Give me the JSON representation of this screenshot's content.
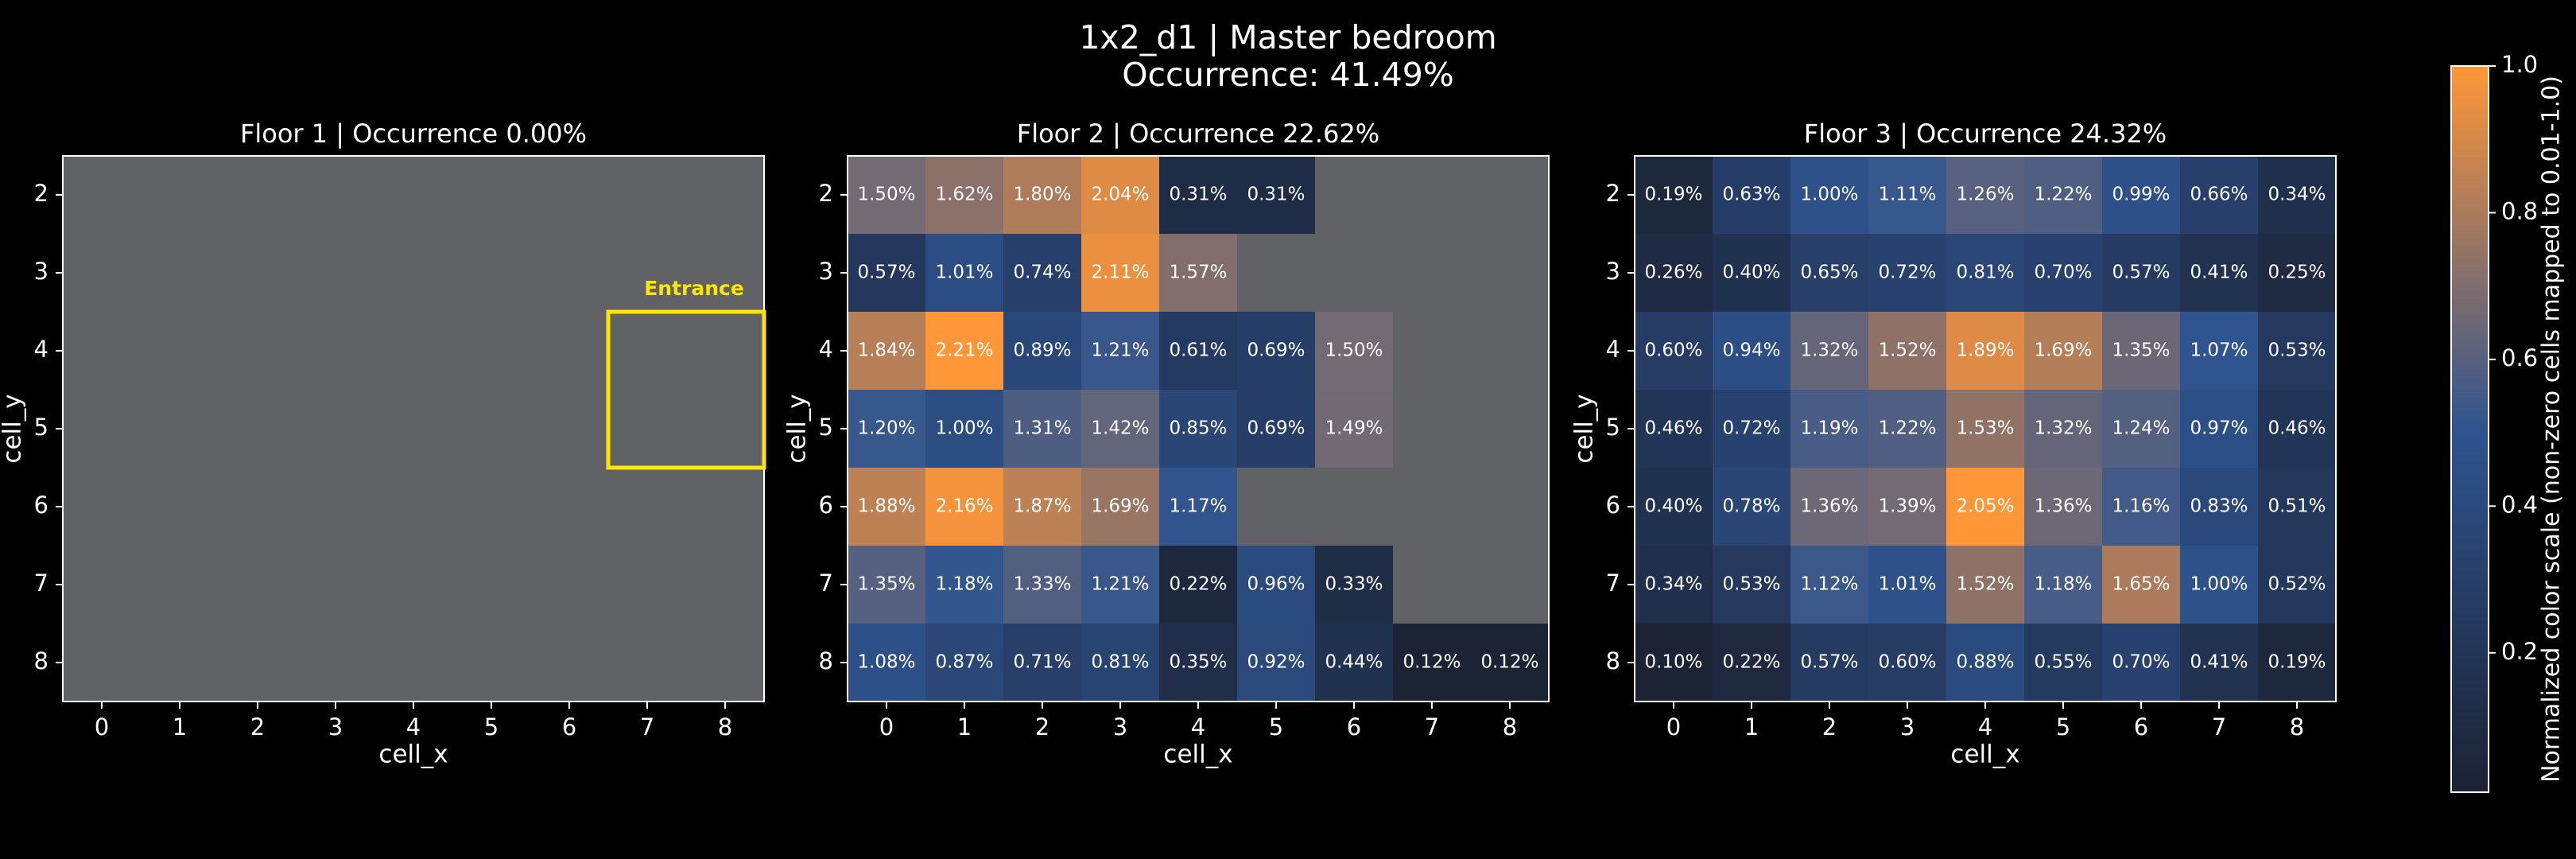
{
  "figure": {
    "title": "1x2_d1 | Master bedroom",
    "subtitle": "Occurrence: 41.49%"
  },
  "chart_data": [
    {
      "type": "heatmap",
      "title": "Floor 1 | Occurrence 0.00%",
      "xlabel": "cell_x",
      "ylabel": "cell_y",
      "x": [
        0,
        1,
        2,
        3,
        4,
        5,
        6,
        7,
        8
      ],
      "y": [
        2,
        3,
        4,
        5,
        6,
        7,
        8
      ],
      "empty_color": "#606266",
      "values": [
        [
          0,
          0,
          0,
          0,
          0,
          0,
          0,
          0,
          0
        ],
        [
          0,
          0,
          0,
          0,
          0,
          0,
          0,
          0,
          0
        ],
        [
          0,
          0,
          0,
          0,
          0,
          0,
          0,
          0,
          0
        ],
        [
          0,
          0,
          0,
          0,
          0,
          0,
          0,
          0,
          0
        ],
        [
          0,
          0,
          0,
          0,
          0,
          0,
          0,
          0,
          0
        ],
        [
          0,
          0,
          0,
          0,
          0,
          0,
          0,
          0,
          0
        ],
        [
          0,
          0,
          0,
          0,
          0,
          0,
          0,
          0,
          0
        ]
      ],
      "annotation": {
        "text": "Entrance",
        "x0": 6.5,
        "x1": 8.5,
        "y0": 3.5,
        "y1": 5.5,
        "color": "#ffe600"
      }
    },
    {
      "type": "heatmap",
      "title": "Floor 2 | Occurrence 22.62%",
      "xlabel": "cell_x",
      "ylabel": "cell_y",
      "x": [
        0,
        1,
        2,
        3,
        4,
        5,
        6,
        7,
        8
      ],
      "y": [
        2,
        3,
        4,
        5,
        6,
        7,
        8
      ],
      "empty_color": "#606266",
      "values": [
        [
          1.5,
          1.62,
          1.8,
          2.04,
          0.31,
          0.31,
          0,
          0,
          0
        ],
        [
          0.57,
          1.01,
          0.74,
          2.11,
          1.57,
          0,
          0,
          0,
          0
        ],
        [
          1.84,
          2.21,
          0.89,
          1.21,
          0.61,
          0.69,
          1.5,
          0,
          0
        ],
        [
          1.2,
          1.0,
          1.31,
          1.42,
          0.85,
          0.69,
          1.49,
          0,
          0
        ],
        [
          1.88,
          2.16,
          1.87,
          1.69,
          1.17,
          0,
          0,
          0,
          0
        ],
        [
          1.35,
          1.18,
          1.33,
          1.21,
          0.22,
          0.96,
          0.33,
          0,
          0
        ],
        [
          1.08,
          0.87,
          0.71,
          0.81,
          0.35,
          0.92,
          0.44,
          0.12,
          0.12
        ]
      ],
      "value_labels": [
        [
          "1.50%",
          "1.62%",
          "1.80%",
          "2.04%",
          "0.31%",
          "0.31%",
          null,
          null,
          null
        ],
        [
          "0.57%",
          "1.01%",
          "0.74%",
          "2.11%",
          "1.57%",
          null,
          null,
          null,
          null
        ],
        [
          "1.84%",
          "2.21%",
          "0.89%",
          "1.21%",
          "0.61%",
          "0.69%",
          "1.50%",
          null,
          null
        ],
        [
          "1.20%",
          "1.00%",
          "1.31%",
          "1.42%",
          "0.85%",
          "0.69%",
          "1.49%",
          null,
          null
        ],
        [
          "1.88%",
          "2.16%",
          "1.87%",
          "1.69%",
          "1.17%",
          null,
          null,
          null,
          null
        ],
        [
          "1.35%",
          "1.18%",
          "1.33%",
          "1.21%",
          "0.22%",
          "0.96%",
          "0.33%",
          null,
          null
        ],
        [
          "1.08%",
          "0.87%",
          "0.71%",
          "0.81%",
          "0.35%",
          "0.92%",
          "0.44%",
          "0.12%",
          "0.12%"
        ]
      ]
    },
    {
      "type": "heatmap",
      "title": "Floor 3 | Occurrence 24.32%",
      "xlabel": "cell_x",
      "ylabel": "cell_y",
      "x": [
        0,
        1,
        2,
        3,
        4,
        5,
        6,
        7,
        8
      ],
      "y": [
        2,
        3,
        4,
        5,
        6,
        7,
        8
      ],
      "empty_color": "#606266",
      "values": [
        [
          0.19,
          0.63,
          1.0,
          1.11,
          1.26,
          1.22,
          0.99,
          0.66,
          0.34
        ],
        [
          0.26,
          0.4,
          0.65,
          0.72,
          0.81,
          0.7,
          0.57,
          0.41,
          0.25
        ],
        [
          0.6,
          0.94,
          1.32,
          1.52,
          1.89,
          1.69,
          1.35,
          1.07,
          0.53
        ],
        [
          0.46,
          0.72,
          1.19,
          1.22,
          1.53,
          1.32,
          1.24,
          0.97,
          0.46
        ],
        [
          0.4,
          0.78,
          1.36,
          1.39,
          2.05,
          1.36,
          1.16,
          0.83,
          0.51
        ],
        [
          0.34,
          0.53,
          1.12,
          1.01,
          1.52,
          1.18,
          1.65,
          1.0,
          0.52
        ],
        [
          0.1,
          0.22,
          0.57,
          0.6,
          0.88,
          0.55,
          0.7,
          0.41,
          0.19
        ]
      ],
      "value_labels": [
        [
          "0.19%",
          "0.63%",
          "1.00%",
          "1.11%",
          "1.26%",
          "1.22%",
          "0.99%",
          "0.66%",
          "0.34%"
        ],
        [
          "0.26%",
          "0.40%",
          "0.65%",
          "0.72%",
          "0.81%",
          "0.70%",
          "0.57%",
          "0.41%",
          "0.25%"
        ],
        [
          "0.60%",
          "0.94%",
          "1.32%",
          "1.52%",
          "1.89%",
          "1.69%",
          "1.35%",
          "1.07%",
          "0.53%"
        ],
        [
          "0.46%",
          "0.72%",
          "1.19%",
          "1.22%",
          "1.53%",
          "1.32%",
          "1.24%",
          "0.97%",
          "0.46%"
        ],
        [
          "0.40%",
          "0.78%",
          "1.36%",
          "1.39%",
          "2.05%",
          "1.36%",
          "1.16%",
          "0.83%",
          "0.51%"
        ],
        [
          "0.34%",
          "0.53%",
          "1.12%",
          "1.01%",
          "1.52%",
          "1.18%",
          "1.65%",
          "1.00%",
          "0.52%"
        ],
        [
          "0.10%",
          "0.22%",
          "0.57%",
          "0.60%",
          "0.88%",
          "0.55%",
          "0.70%",
          "0.41%",
          "0.19%"
        ]
      ]
    },
    {
      "type": "colorbar",
      "label": "Normalized color scale (non-zero cells mapped to 0.01-1.0)",
      "ylim": [
        0.01,
        1
      ],
      "yticks": [
        0.2,
        0.4,
        0.6,
        0.8,
        {
          "value": 1,
          "label": "1.0"
        }
      ],
      "colormap": [
        "#1b2233",
        "#2f5490",
        "#ff9638"
      ]
    }
  ]
}
